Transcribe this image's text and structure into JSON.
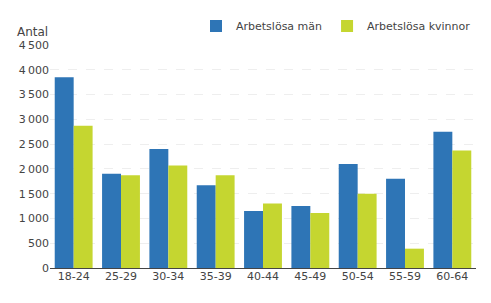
{
  "chart_data": {
    "type": "bar",
    "ylabel": "Antal",
    "categories": [
      "18-24",
      "25-29",
      "30-34",
      "35-39",
      "40-44",
      "45-49",
      "50-54",
      "55-59",
      "60-64"
    ],
    "series": [
      {
        "name": "Arbetslösa män",
        "color": "#2E75B6",
        "values": [
          3850,
          1900,
          2400,
          1670,
          1150,
          1250,
          2100,
          1800,
          2750
        ]
      },
      {
        "name": "Arbetslösa kvinnor",
        "color": "#C5D630",
        "values": [
          2870,
          1870,
          2070,
          1870,
          1300,
          1110,
          1500,
          390,
          2370
        ]
      }
    ],
    "ylim": [
      0,
      4500
    ],
    "yticks": [
      0,
      500,
      {
        "value": 1000,
        "label": "1 000"
      },
      {
        "value": 1500,
        "label": "1 500"
      },
      {
        "value": 2000,
        "label": "2 000"
      },
      {
        "value": 2500,
        "label": "2 500"
      },
      {
        "value": 3000,
        "label": "3 000"
      },
      {
        "value": 3500,
        "label": "3 500"
      },
      {
        "value": 4000,
        "label": "4 000"
      },
      {
        "value": 4500,
        "label": "4 500"
      }
    ],
    "grid": true,
    "legend": "upper right"
  }
}
